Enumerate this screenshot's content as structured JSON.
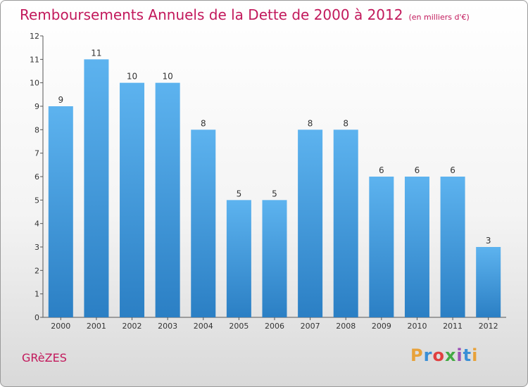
{
  "chart_data": {
    "type": "bar",
    "title": "Remboursements Annuels de la Dette de 2000 à 2012",
    "subtitle": "(en milliers d'€)",
    "categories": [
      "2000",
      "2001",
      "2002",
      "2003",
      "2004",
      "2005",
      "2006",
      "2007",
      "2008",
      "2009",
      "2010",
      "2011",
      "2012"
    ],
    "values": [
      9,
      11,
      10,
      10,
      8,
      5,
      5,
      8,
      8,
      6,
      6,
      6,
      3
    ],
    "ylim": [
      0,
      12
    ],
    "yticks": [
      0,
      1,
      2,
      3,
      4,
      5,
      6,
      7,
      8,
      9,
      10,
      11,
      12
    ],
    "xlabel": "",
    "ylabel": "",
    "grid": false,
    "bar_color": "#4a9fe0"
  },
  "commune": "GRèZES",
  "logo": {
    "text": "Proxiti",
    "colors": [
      "#e8a23a",
      "#3a8fd6",
      "#e04040",
      "#44aa44",
      "#9b4fb5",
      "#3a8fd6",
      "#e8a23a"
    ]
  }
}
